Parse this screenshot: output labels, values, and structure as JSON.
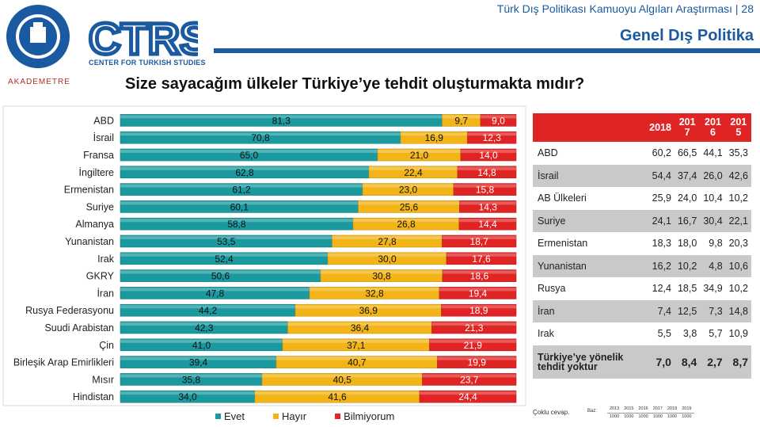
{
  "header": {
    "report_title": "Türk Dış Politikası Kamuoyu Algıları Araştırması | 28",
    "section_title": "Genel Dış Politika",
    "question": "Size sayacağım ülkeler Türkiye’ye tehdit oluşturmakta mıdır?",
    "khas_logo_text": "KADIR HAS ÜNİVERSİTESİ",
    "khas_logo_year": "1997",
    "ctrs_logo_text": "CTRS",
    "ctrs_subtitle": "CENTER FOR TURKISH STUDIES",
    "akademetre_text": "AKADEMETRE"
  },
  "colors": {
    "evet": "#1a9a9e",
    "hayir": "#f2b417",
    "bilmiyorum": "#e02424",
    "brand_blue": "#1a5aa0"
  },
  "chart_data": {
    "type": "bar",
    "stacked": true,
    "orientation": "horizontal",
    "categories": [
      "ABD",
      "İsrail",
      "Fransa",
      "İngiltere",
      "Ermenistan",
      "Suriye",
      "Almanya",
      "Yunanistan",
      "Irak",
      "GKRY",
      "İran",
      "Rusya Federasyonu",
      "Suudi Arabistan",
      "Çin",
      "Birleşik Arap Emirlikleri",
      "Mısır",
      "Hindistan"
    ],
    "series": [
      {
        "name": "Evet",
        "values": [
          81.3,
          70.8,
          65.0,
          62.8,
          61.2,
          60.1,
          58.8,
          53.5,
          52.4,
          50.6,
          47.8,
          44.2,
          42.3,
          41.0,
          39.4,
          35.8,
          34.0
        ],
        "labels": [
          "81,3",
          "70,8",
          "65,0",
          "62,8",
          "61,2",
          "60,1",
          "58,8",
          "53,5",
          "52,4",
          "50,6",
          "47,8",
          "44,2",
          "42,3",
          "41,0",
          "39,4",
          "35,8",
          "34,0"
        ]
      },
      {
        "name": "Hayır",
        "values": [
          9.7,
          16.9,
          21.0,
          22.4,
          23.0,
          25.6,
          26.8,
          27.8,
          30.0,
          30.8,
          32.8,
          36.9,
          36.4,
          37.1,
          40.7,
          40.5,
          41.6
        ],
        "labels": [
          "9,7",
          "16,9",
          "21,0",
          "22,4",
          "23,0",
          "25,6",
          "26,8",
          "27,8",
          "30,0",
          "30,8",
          "32,8",
          "36,9",
          "36,4",
          "37,1",
          "40,7",
          "40,5",
          "41,6"
        ]
      },
      {
        "name": "Bilmiyorum",
        "values": [
          9.0,
          12.3,
          14.0,
          14.8,
          15.8,
          14.3,
          14.4,
          18.7,
          17.6,
          18.6,
          19.4,
          18.9,
          21.3,
          21.9,
          19.9,
          23.7,
          24.4
        ],
        "labels": [
          "9,0",
          "12,3",
          "14,0",
          "14,8",
          "15,8",
          "14,3",
          "14,4",
          "18,7",
          "17,6",
          "18,6",
          "19,4",
          "18,9",
          "21,3",
          "21,9",
          "19,9",
          "23,7",
          "24,4"
        ]
      }
    ],
    "xlim": [
      0,
      100
    ],
    "legend_position": "bottom"
  },
  "legend": [
    {
      "label": "Evet"
    },
    {
      "label": "Hayır"
    },
    {
      "label": "Bilmiyorum"
    }
  ],
  "table": {
    "headers": [
      "2018",
      "201\n7",
      "201\n6",
      "201\n5"
    ],
    "rows": [
      {
        "country": "ABD",
        "values": [
          "60,2",
          "66,5",
          "44,1",
          "35,3"
        ]
      },
      {
        "country": "İsrail",
        "values": [
          "54,4",
          "37,4",
          "26,0",
          "42,6"
        ]
      },
      {
        "country": "AB Ülkeleri",
        "values": [
          "25,9",
          "24,0",
          "10,4",
          "10,2"
        ]
      },
      {
        "country": "Suriye",
        "values": [
          "24,1",
          "16,7",
          "30,4",
          "22,1"
        ]
      },
      {
        "country": "Ermenistan",
        "values": [
          "18,3",
          "18,0",
          "9,8",
          "20,3"
        ]
      },
      {
        "country": "Yunanistan",
        "values": [
          "16,2",
          "10,2",
          "4,8",
          "10,6"
        ]
      },
      {
        "country": "Rusya",
        "values": [
          "12,4",
          "18,5",
          "34,9",
          "10,2"
        ]
      },
      {
        "country": "İran",
        "values": [
          "7,4",
          "12,5",
          "7,3",
          "14,8"
        ]
      },
      {
        "country": "Irak",
        "values": [
          "5,5",
          "3,8",
          "5,7",
          "10,9"
        ]
      },
      {
        "country": "Türkiye’ye yönelik tehdit yoktur",
        "values": [
          "7,0",
          "8,4",
          "2,7",
          "8,7"
        ]
      }
    ]
  },
  "footnote": {
    "note": "Çoklu cevap.",
    "base_label": "Baz:",
    "years": [
      "2013",
      "2015",
      "2016",
      "2017",
      "2018",
      "2019"
    ],
    "bases": [
      "1000",
      "1000",
      "1000",
      "1000",
      "1000",
      "1000"
    ]
  }
}
